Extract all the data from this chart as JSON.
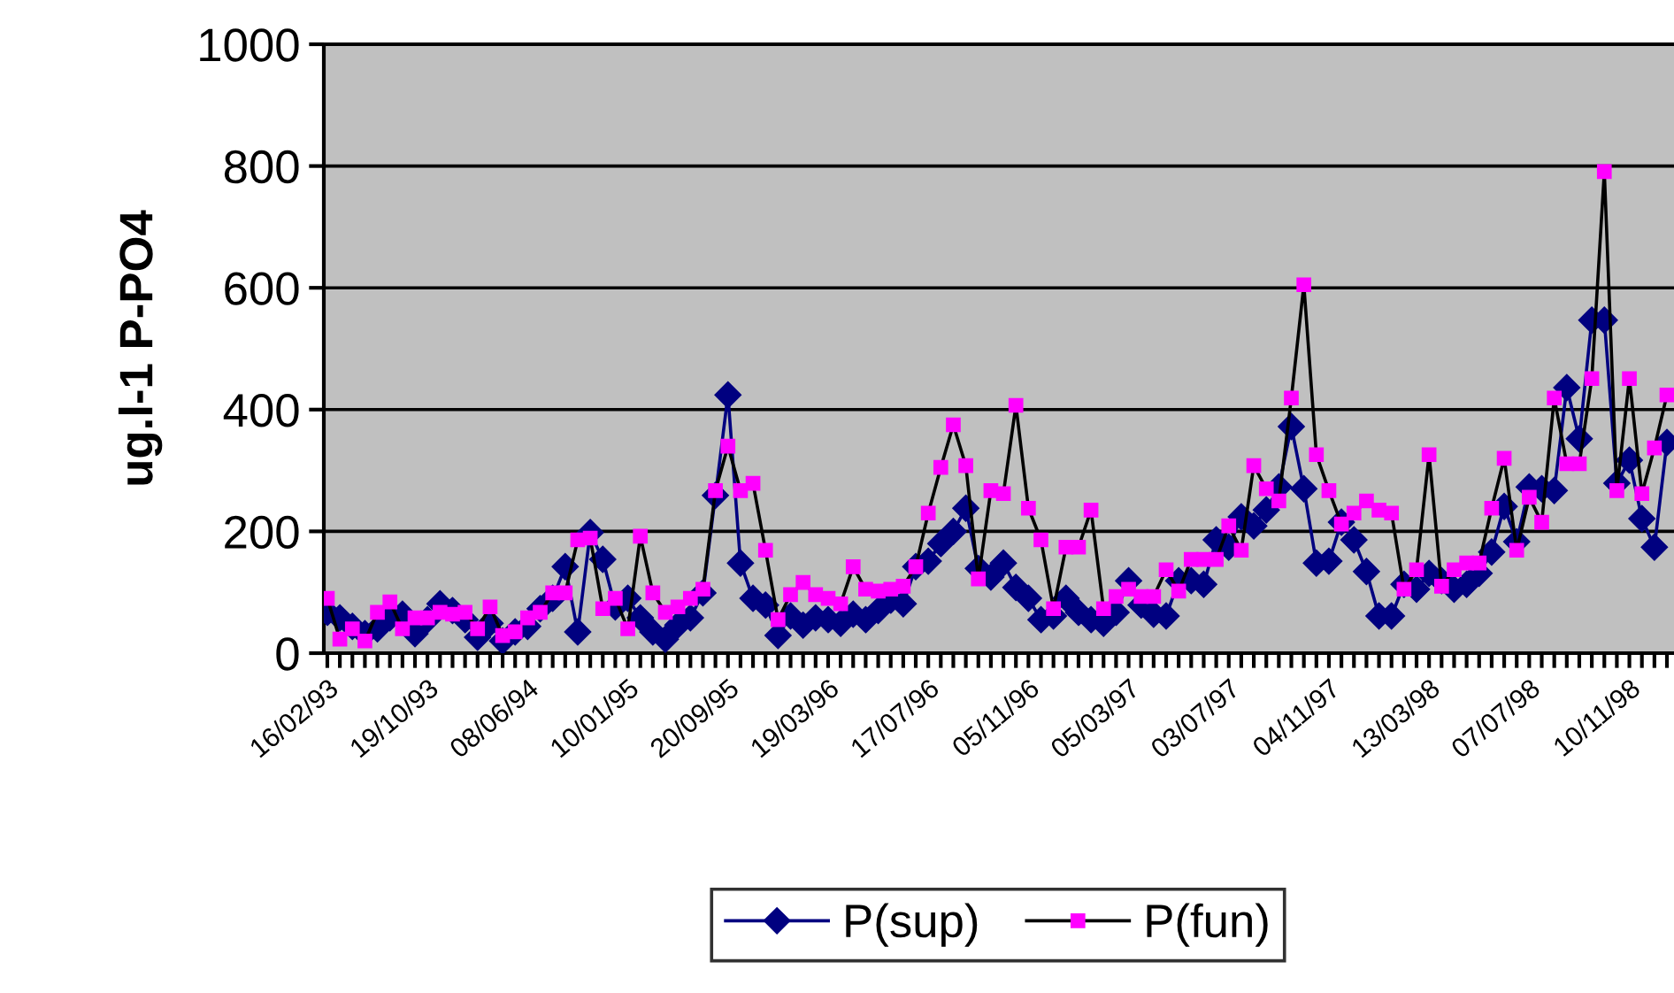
{
  "chart_data": {
    "type": "line",
    "ylabel": "ug.l-1 P-PO4",
    "categories": [
      "16/02/93",
      null,
      null,
      null,
      null,
      null,
      null,
      null,
      "19/10/93",
      null,
      null,
      null,
      null,
      null,
      null,
      null,
      "08/06/94",
      null,
      null,
      null,
      null,
      null,
      null,
      null,
      "10/01/95",
      null,
      null,
      null,
      null,
      null,
      null,
      null,
      "20/09/95",
      null,
      null,
      null,
      null,
      null,
      null,
      null,
      "19/03/96",
      null,
      null,
      null,
      null,
      null,
      null,
      null,
      "17/07/96",
      null,
      null,
      null,
      null,
      null,
      null,
      null,
      "05/11/96",
      null,
      null,
      null,
      null,
      null,
      null,
      null,
      "05/03/97",
      null,
      null,
      null,
      null,
      null,
      null,
      null,
      "03/07/97",
      null,
      null,
      null,
      null,
      null,
      null,
      null,
      "04/11/97",
      null,
      null,
      null,
      null,
      null,
      null,
      null,
      "13/03/98",
      null,
      null,
      null,
      null,
      null,
      null,
      null,
      "07/07/98",
      null,
      null,
      null,
      null,
      null,
      null,
      null,
      "10/11/98",
      null,
      null,
      null
    ],
    "series": [
      {
        "name": "P(sup)",
        "color": "#000080",
        "marker": "diamond",
        "values": [
          67,
          58,
          44,
          32,
          40,
          58,
          64,
          32,
          55,
          81,
          70,
          55,
          26,
          49,
          20,
          35,
          44,
          73,
          90,
          142,
          35,
          198,
          154,
          76,
          90,
          58,
          35,
          23,
          46,
          58,
          99,
          259,
          424,
          148,
          90,
          79,
          29,
          61,
          46,
          58,
          55,
          49,
          64,
          55,
          70,
          87,
          81,
          142,
          151,
          180,
          200,
          238,
          139,
          125,
          148,
          108,
          90,
          55,
          61,
          90,
          67,
          55,
          49,
          67,
          119,
          79,
          64,
          61,
          119,
          119,
          113,
          186,
          174,
          224,
          209,
          235,
          273,
          372,
          270,
          148,
          151,
          215,
          186,
          134,
          61,
          61,
          113,
          105,
          131,
          119,
          105,
          113,
          131,
          166,
          241,
          183,
          273,
          270,
          267,
          436,
          352,
          547,
          547,
          279,
          317,
          221,
          174,
          346
        ]
      },
      {
        "name": "P(fun)",
        "color": "#ff00ff",
        "marker": "square",
        "values": [
          90,
          23,
          40,
          20,
          67,
          84,
          40,
          58,
          58,
          67,
          64,
          67,
          40,
          76,
          29,
          35,
          58,
          67,
          99,
          99,
          186,
          189,
          73,
          90,
          40,
          192,
          99,
          67,
          76,
          90,
          105,
          267,
          340,
          267,
          279,
          169,
          55,
          96,
          116,
          96,
          90,
          81,
          142,
          105,
          102,
          105,
          110,
          142,
          230,
          305,
          375,
          308,
          122,
          267,
          262,
          407,
          238,
          186,
          73,
          174,
          174,
          235,
          73,
          93,
          105,
          93,
          93,
          137,
          102,
          154,
          154,
          154,
          209,
          169,
          308,
          270,
          250,
          419,
          605,
          326,
          267,
          212,
          230,
          250,
          235,
          230,
          105,
          137,
          326,
          110,
          137,
          148,
          148,
          238,
          320,
          169,
          256,
          215,
          419,
          311,
          311,
          451,
          791,
          267,
          451,
          262,
          337,
          424
        ]
      }
    ],
    "ylim": [
      0,
      1000
    ],
    "yticks": [
      0,
      200,
      400,
      600,
      800,
      1000
    ],
    "grid": "y",
    "legend": "bottom",
    "line_style": "solid"
  }
}
